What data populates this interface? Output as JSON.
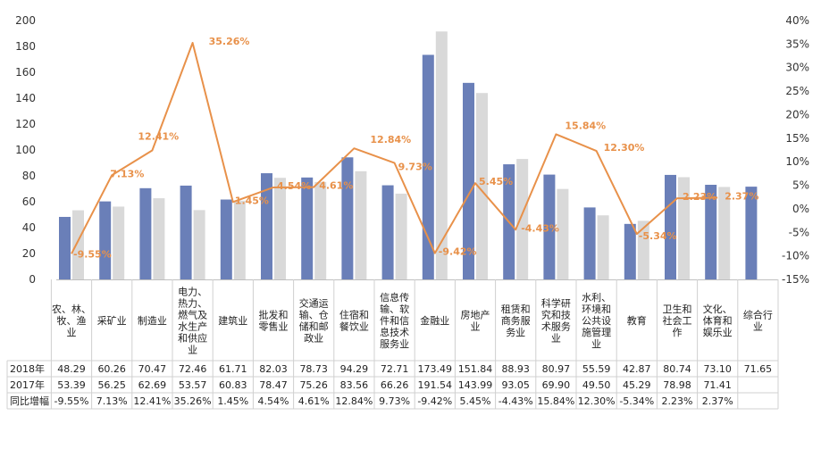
{
  "chart_data": {
    "type": "bar",
    "categories": [
      "农、林、牧、渔业",
      "采矿业",
      "制造业",
      "电力、热力、燃气及水生产和供应业",
      "建筑业",
      "批发和零售业",
      "交通运输、仓储和邮政业",
      "住宿和餐饮业",
      "信息传输、软件和信息技术服务业",
      "金融业",
      "房地产业",
      "租赁和商务服务业",
      "科学研究和技术服务业",
      "水利、环境和公共设施管理业",
      "教育",
      "卫生和社会工作",
      "文化、体育和娱乐业",
      "综合行业"
    ],
    "category_lines": [
      [
        "农、林、",
        "牧、渔",
        "业"
      ],
      [
        "采矿业"
      ],
      [
        "制造业"
      ],
      [
        "电力、",
        "热力、",
        "燃气及",
        "水生产",
        "和供应",
        "业"
      ],
      [
        "建筑业"
      ],
      [
        "批发和",
        "零售业"
      ],
      [
        "交通运",
        "输、仓",
        "储和邮",
        "政业"
      ],
      [
        "住宿和",
        "餐饮业"
      ],
      [
        "信息传",
        "输、软",
        "件和信",
        "息技术",
        "服务业"
      ],
      [
        "金融业"
      ],
      [
        "房地产",
        "业"
      ],
      [
        "租赁和",
        "商务服",
        "务业"
      ],
      [
        "科学研",
        "究和技",
        "术服务",
        "业"
      ],
      [
        "水利、",
        "环境和",
        "公共设",
        "施管理",
        "业"
      ],
      [
        "教育"
      ],
      [
        "卫生和",
        "社会工",
        "作"
      ],
      [
        "文化、",
        "体育和",
        "娱乐业"
      ],
      [
        "综合行",
        "业"
      ]
    ],
    "series": [
      {
        "name": "2018年",
        "color": "#6A7FB8",
        "values": [
          48.29,
          60.26,
          70.47,
          72.46,
          61.71,
          82.03,
          78.73,
          94.29,
          72.71,
          173.49,
          151.84,
          88.93,
          80.97,
          55.59,
          42.87,
          80.74,
          73.1,
          71.65
        ]
      },
      {
        "name": "2017年",
        "color": "#D9D9D9",
        "values": [
          53.39,
          56.25,
          62.69,
          53.57,
          60.83,
          78.47,
          75.26,
          83.56,
          66.26,
          191.54,
          143.99,
          93.05,
          69.9,
          49.5,
          45.29,
          78.98,
          71.41,
          null
        ]
      },
      {
        "name": "同比增幅",
        "color": "#E8914A",
        "axis": "right",
        "values": [
          -9.55,
          7.13,
          12.41,
          35.26,
          1.45,
          4.54,
          4.61,
          12.84,
          9.73,
          -9.42,
          5.45,
          -4.43,
          15.84,
          12.3,
          -5.34,
          2.23,
          2.37,
          null
        ]
      }
    ],
    "table_rows": [
      {
        "label": "2018年",
        "cells": [
          "48.29",
          "60.26",
          "70.47",
          "72.46",
          "61.71",
          "82.03",
          "78.73",
          "94.29",
          "72.71",
          "173.49",
          "151.84",
          "88.93",
          "80.97",
          "55.59",
          "42.87",
          "80.74",
          "73.10",
          "71.65"
        ]
      },
      {
        "label": "2017年",
        "cells": [
          "53.39",
          "56.25",
          "62.69",
          "53.57",
          "60.83",
          "78.47",
          "75.26",
          "83.56",
          "66.26",
          "191.54",
          "143.99",
          "93.05",
          "69.90",
          "49.50",
          "45.29",
          "78.98",
          "71.41",
          ""
        ]
      },
      {
        "label": "同比增幅",
        "cells": [
          "-9.55%",
          "7.13%",
          "12.41%",
          "35.26%",
          "1.45%",
          "4.54%",
          "4.61%",
          "12.84%",
          "9.73%",
          "-9.42%",
          "5.45%",
          "-4.43%",
          "15.84%",
          "12.30%",
          "-5.34%",
          "2.23%",
          "2.37%",
          ""
        ]
      }
    ],
    "pct_labels": [
      "-9.55%",
      "7.13%",
      "12.41%",
      "35.26%",
      "1.45%",
      "4.54%",
      "4.61%",
      "12.84%",
      "9.73%",
      "-9.42%",
      "5.45%",
      "-4.43%",
      "15.84%",
      "12.30%",
      "-5.34%",
      "2.23%",
      "2.37%",
      ""
    ],
    "y_left": {
      "min": 0,
      "max": 200,
      "step": 20,
      "ticks": [
        "0",
        "20",
        "40",
        "60",
        "80",
        "100",
        "120",
        "140",
        "160",
        "180",
        "200"
      ]
    },
    "y_right": {
      "min": -15,
      "max": 40,
      "step": 5,
      "ticks": [
        "-15%",
        "-10%",
        "-5%",
        "0%",
        "5%",
        "10%",
        "15%",
        "20%",
        "25%",
        "30%",
        "35%",
        "40%"
      ]
    },
    "grid": false,
    "legend": "table-bottom"
  }
}
